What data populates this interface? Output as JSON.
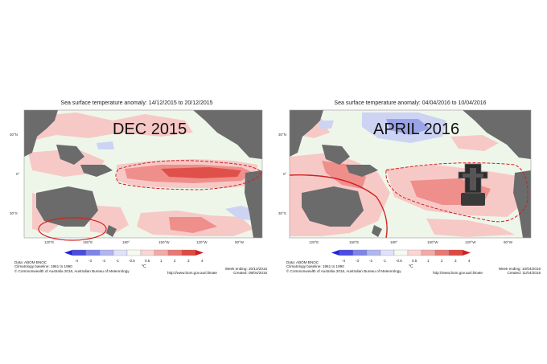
{
  "panels": [
    {
      "title": "Sea surface temperature anomaly: 14/12/2015 to 20/12/2015",
      "overlay_label": "DEC 2015",
      "lat_labels": [
        "30°N",
        "0°",
        "30°S"
      ],
      "lon_labels": [
        "120°E",
        "150°E",
        "180°",
        "150°W",
        "120°W",
        "90°W"
      ],
      "colorbar_ticks": [
        "-4",
        "-3",
        "-2",
        "-1",
        "-0.5",
        "0.5",
        "1",
        "2",
        "3",
        "4"
      ],
      "unit": "°C",
      "footer_left": [
        "Data: ABOM BNOC",
        "Climatology baseline: 1961 to 1990",
        "© Commonwealth of Australia 2016, Australian Bureau of Meteorology"
      ],
      "url": "http://www.bom.gov.au/climate",
      "week_ending": "Week ending: 20/12/2015",
      "created": "Created: 08/04/2016"
    },
    {
      "title": "Sea surface temperature anomaly: 04/04/2016 to 10/04/2016",
      "overlay_label": "APRIL 2016",
      "lat_labels": [
        "30°N",
        "0°",
        "30°S"
      ],
      "lon_labels": [
        "120°E",
        "150°E",
        "180°",
        "150°W",
        "120°W",
        "90°W"
      ],
      "colorbar_ticks": [
        "-4",
        "-3",
        "-2",
        "-1",
        "-0.5",
        "0.5",
        "1",
        "2",
        "3",
        "4"
      ],
      "unit": "°C",
      "footer_left": [
        "Data: ABOM BNOC",
        "Climatology baseline: 1961 to 1990",
        "© Commonwealth of Australia 2016, Australian Bureau of Meteorology"
      ],
      "url": "http://www.bom.gov.au/climate",
      "week_ending": "Week ending: 10/04/2016",
      "created": "Created: 11/04/2016"
    }
  ],
  "colors": {
    "land": "#6b6b6b",
    "ocean_neutral": "#eef6ea",
    "warm_light": "#f7c9c6",
    "warm_mid": "#ef8f8c",
    "warm_strong": "#e0504b",
    "cool_light": "#cdd3f3",
    "cool_mid": "#9aa4e6",
    "annotation_red": "#d32020"
  },
  "colorbar_colors": [
    "#2222dd",
    "#4a4ee0",
    "#7f85e8",
    "#b0b6f0",
    "#dfe2f8",
    "#f6faf2",
    "#f9d6d3",
    "#f2aaa6",
    "#e97873",
    "#de4a44",
    "#d11d1d"
  ]
}
